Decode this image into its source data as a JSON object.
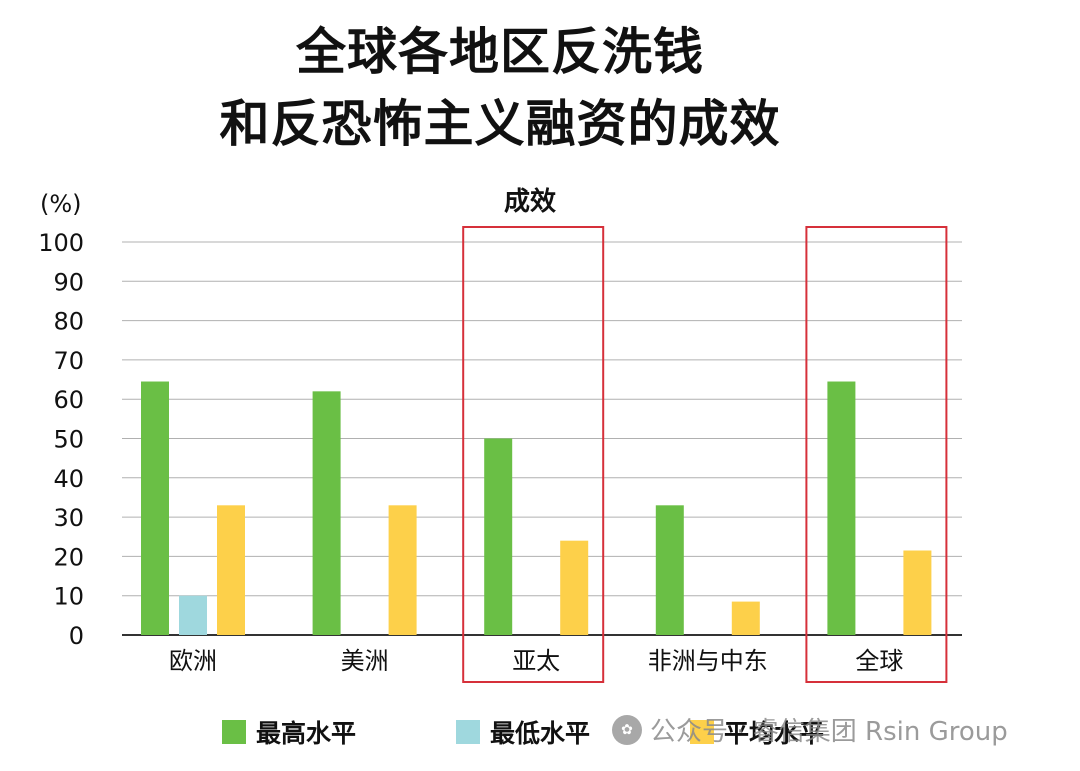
{
  "title_line1": "全球各地区反洗钱",
  "title_line2": "和反恐怖主义融资的成效",
  "chart_data": {
    "type": "bar",
    "title": "成效",
    "ylabel": "(%)",
    "ylim": [
      0,
      100
    ],
    "yticks": [
      "0",
      "10",
      "20",
      "30",
      "40",
      "50",
      "60",
      "70",
      "80",
      "90",
      "100"
    ],
    "grid": true,
    "legend_position": "bottom",
    "categories": [
      "欧洲",
      "美洲",
      "亚太",
      "非洲与中东",
      "全球"
    ],
    "highlighted_categories": [
      "亚太",
      "全球"
    ],
    "series": [
      {
        "name": "最高水平",
        "color": "#6abf45",
        "values": [
          64.5,
          62,
          50,
          33,
          64.5
        ]
      },
      {
        "name": "最低水平",
        "color": "#9fd8de",
        "values": [
          10,
          null,
          null,
          null,
          null
        ]
      },
      {
        "name": "平均水平",
        "color": "#fdd04a",
        "values": [
          33,
          33,
          24,
          8.5,
          21.5
        ]
      }
    ]
  },
  "watermark": "公众号 · 睿信集团 Rsin Group",
  "colors": {
    "highlight_box": "#d6303a",
    "grid": "#b0b0b0",
    "axis": "#333333"
  }
}
